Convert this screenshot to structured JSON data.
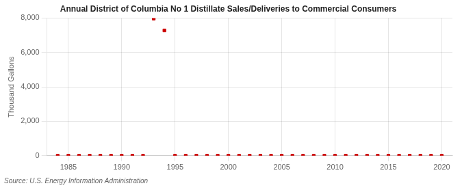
{
  "chart_data": {
    "type": "scatter",
    "title": "Annual District of Columbia No 1 Distillate Sales/Deliveries to Commercial Consumers",
    "ylabel": "Thousand Gallons",
    "source": "Source: U.S. Energy Information Administration",
    "x": [
      1984,
      1985,
      1986,
      1987,
      1988,
      1989,
      1990,
      1991,
      1992,
      1993,
      1994,
      1995,
      1996,
      1997,
      1998,
      1999,
      2000,
      2001,
      2002,
      2003,
      2004,
      2005,
      2006,
      2007,
      2008,
      2009,
      2010,
      2011,
      2012,
      2013,
      2014,
      2015,
      2016,
      2017,
      2018,
      2019,
      2020
    ],
    "values": [
      0,
      0,
      0,
      0,
      0,
      0,
      0,
      0,
      0,
      7970,
      7280,
      0,
      0,
      0,
      0,
      0,
      0,
      0,
      0,
      0,
      0,
      0,
      0,
      0,
      0,
      0,
      0,
      0,
      0,
      0,
      0,
      0,
      0,
      0,
      0,
      0,
      0
    ],
    "color": "#cc0000",
    "marker": "square",
    "xlim": [
      1983,
      2021
    ],
    "xticks": [
      1985,
      1990,
      1995,
      2000,
      2005,
      2010,
      2015,
      2020
    ],
    "ylim": [
      0,
      8000
    ],
    "yticks": [
      0,
      {
        "value": 2000,
        "label": "2,000"
      },
      {
        "value": 4000,
        "label": "4,000"
      },
      {
        "value": 6000,
        "label": "6,000"
      },
      {
        "value": 8000,
        "label": "8,000"
      }
    ],
    "grid": true
  }
}
